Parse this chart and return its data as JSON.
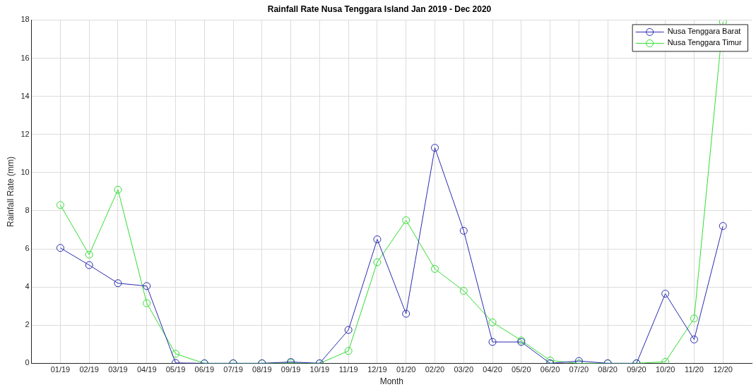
{
  "chart_data": {
    "type": "line",
    "title": "Rainfall Rate Nusa Tenggara Island Jan 2019 - Dec 2020",
    "xlabel": "Month",
    "ylabel": "Rainfall Rate (mm)",
    "categories": [
      "01/19",
      "02/19",
      "03/19",
      "04/19",
      "05/19",
      "06/19",
      "07/19",
      "08/19",
      "09/19",
      "10/19",
      "11/19",
      "12/19",
      "01/20",
      "02/20",
      "03/20",
      "04/20",
      "05/20",
      "06/20",
      "07/20",
      "08/20",
      "09/20",
      "10/20",
      "11/20",
      "12/20"
    ],
    "series": [
      {
        "name": "Nusa Tenggara Barat",
        "color": "#2a2ab0",
        "values": [
          6.05,
          5.15,
          4.2,
          4.05,
          0.02,
          0,
          0,
          0,
          0.07,
          0,
          1.75,
          6.5,
          2.6,
          11.3,
          6.95,
          1.12,
          1.12,
          0,
          0.12,
          0,
          0,
          3.65,
          1.25,
          7.2
        ]
      },
      {
        "name": "Nusa Tenggara Timur",
        "color": "#33dd33",
        "values": [
          8.3,
          5.7,
          9.1,
          3.15,
          0.5,
          0,
          0,
          0,
          0.02,
          0,
          0.65,
          5.3,
          7.5,
          4.95,
          3.8,
          2.15,
          1.2,
          0.15,
          0,
          0,
          0,
          0.08,
          2.35,
          17.9
        ]
      }
    ],
    "ylim": [
      0,
      18
    ],
    "yticks": [
      0,
      2,
      4,
      6,
      8,
      10,
      12,
      14,
      16,
      18
    ],
    "grid": true,
    "legend": "top right",
    "marker": "circle",
    "line_style": "solid"
  }
}
